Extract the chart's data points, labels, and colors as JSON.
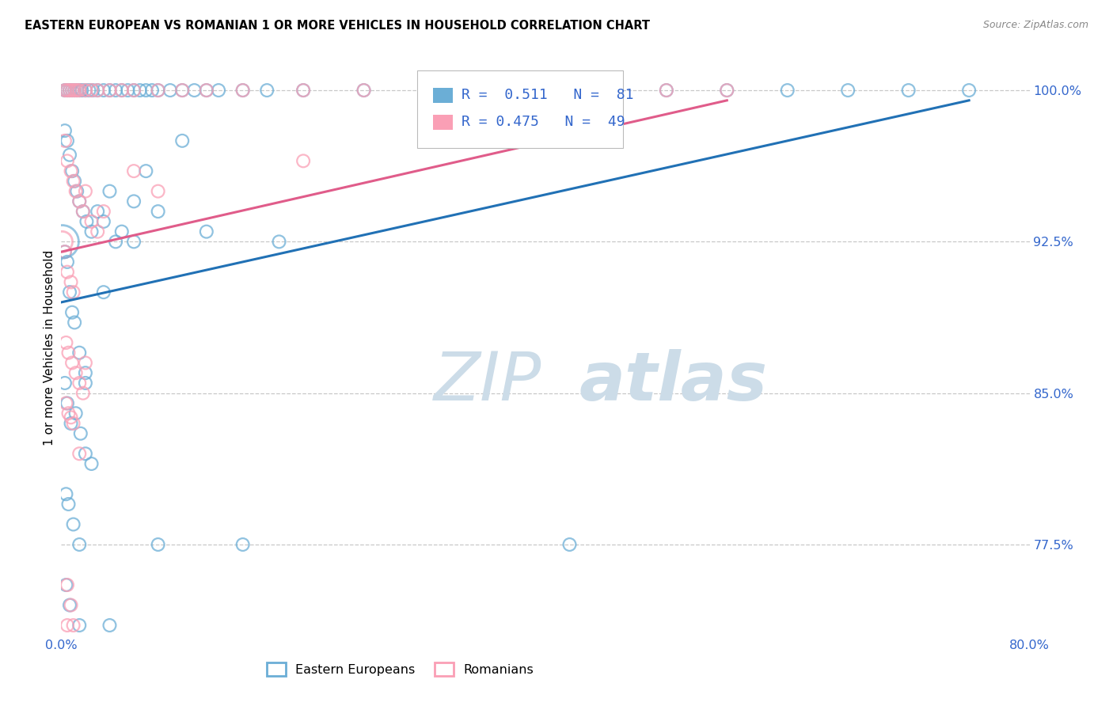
{
  "title": "EASTERN EUROPEAN VS ROMANIAN 1 OR MORE VEHICLES IN HOUSEHOLD CORRELATION CHART",
  "source": "Source: ZipAtlas.com",
  "ylabel": "1 or more Vehicles in Household",
  "xlim": [
    0.0,
    80.0
  ],
  "ylim": [
    73.0,
    101.5
  ],
  "yticks": [
    77.5,
    85.0,
    92.5,
    100.0
  ],
  "xtick_labels": [
    "0.0%",
    "",
    "",
    "",
    "",
    "",
    "",
    "",
    "80.0%"
  ],
  "ytick_labels": [
    "77.5%",
    "85.0%",
    "92.5%",
    "100.0%"
  ],
  "blue_color": "#6baed6",
  "pink_color": "#fa9fb5",
  "blue_line_color": "#2171b5",
  "pink_line_color": "#e05c8a",
  "legend_R_blue": "0.511",
  "legend_N_blue": "81",
  "legend_R_pink": "0.475",
  "legend_N_pink": "49",
  "watermark_zip": "ZIP",
  "watermark_atlas": "atlas",
  "watermark_color": "#ccdce8",
  "blue_scatter_x": [
    0.3,
    0.5,
    0.7,
    0.9,
    1.1,
    1.3,
    1.5,
    1.7,
    2.0,
    2.3,
    2.6,
    3.0,
    3.5,
    4.0,
    4.5,
    5.0,
    5.5,
    6.0,
    6.5,
    7.0,
    7.5,
    8.0,
    9.0,
    10.0,
    11.0,
    12.0,
    13.0,
    15.0,
    17.0,
    20.0,
    25.0,
    30.0,
    35.0,
    40.0,
    45.0,
    50.0,
    55.0,
    60.0,
    65.0,
    70.0,
    75.0,
    0.3,
    0.5,
    0.7,
    0.9,
    1.1,
    1.3,
    1.5,
    1.8,
    2.1,
    2.5,
    3.0,
    3.5,
    4.0,
    4.5,
    5.0,
    6.0,
    7.0,
    8.0,
    10.0,
    12.0,
    18.0,
    0.3,
    0.5,
    0.7,
    0.9,
    1.1,
    1.5,
    2.0,
    0.3,
    0.5,
    0.8,
    1.2,
    1.6,
    2.0,
    2.5,
    0.4,
    0.6,
    1.0,
    1.5,
    0.4,
    0.7,
    3.5,
    6.0,
    2.0,
    8.0,
    15.0,
    42.0,
    1.5,
    4.0
  ],
  "blue_scatter_y": [
    100.0,
    100.0,
    100.0,
    100.0,
    100.0,
    100.0,
    100.0,
    100.0,
    100.0,
    100.0,
    100.0,
    100.0,
    100.0,
    100.0,
    100.0,
    100.0,
    100.0,
    100.0,
    100.0,
    100.0,
    100.0,
    100.0,
    100.0,
    100.0,
    100.0,
    100.0,
    100.0,
    100.0,
    100.0,
    100.0,
    100.0,
    100.0,
    100.0,
    100.0,
    100.0,
    100.0,
    100.0,
    100.0,
    100.0,
    100.0,
    100.0,
    98.0,
    97.5,
    96.8,
    96.0,
    95.5,
    95.0,
    94.5,
    94.0,
    93.5,
    93.0,
    94.0,
    93.5,
    95.0,
    92.5,
    93.0,
    94.5,
    96.0,
    94.0,
    97.5,
    93.0,
    92.5,
    92.0,
    91.5,
    90.0,
    89.0,
    88.5,
    87.0,
    86.0,
    85.5,
    84.5,
    83.5,
    84.0,
    83.0,
    82.0,
    81.5,
    80.0,
    79.5,
    78.5,
    77.5,
    75.5,
    74.5,
    90.0,
    92.5,
    85.5,
    77.5,
    77.5,
    77.5,
    73.5,
    73.5
  ],
  "pink_scatter_x": [
    0.3,
    0.5,
    0.7,
    0.9,
    1.1,
    1.3,
    1.5,
    2.0,
    2.5,
    3.0,
    4.0,
    5.0,
    6.0,
    8.0,
    10.0,
    12.0,
    15.0,
    20.0,
    25.0,
    30.0,
    35.0,
    40.0,
    50.0,
    55.0,
    0.3,
    0.5,
    0.8,
    1.0,
    1.2,
    1.5,
    1.8,
    2.0,
    2.5,
    3.0,
    3.5,
    6.0,
    8.0,
    20.0,
    0.3,
    0.5,
    0.8,
    1.0,
    0.4,
    0.6,
    0.9,
    1.2,
    1.5,
    1.8,
    2.0,
    0.4,
    0.6,
    0.8,
    1.0,
    1.5,
    0.5,
    0.8,
    0.5,
    1.0
  ],
  "pink_scatter_y": [
    100.0,
    100.0,
    100.0,
    100.0,
    100.0,
    100.0,
    100.0,
    100.0,
    100.0,
    100.0,
    100.0,
    100.0,
    100.0,
    100.0,
    100.0,
    100.0,
    100.0,
    100.0,
    100.0,
    100.0,
    100.0,
    100.0,
    100.0,
    100.0,
    97.5,
    96.5,
    96.0,
    95.5,
    95.0,
    94.5,
    94.0,
    95.0,
    93.5,
    93.0,
    94.0,
    96.0,
    95.0,
    96.5,
    92.0,
    91.0,
    90.5,
    90.0,
    87.5,
    87.0,
    86.5,
    86.0,
    85.5,
    85.0,
    86.5,
    84.5,
    84.0,
    83.8,
    83.5,
    82.0,
    75.5,
    74.5,
    73.5,
    73.5
  ],
  "blue_line_x0": 0.0,
  "blue_line_y0": 89.5,
  "blue_line_x1": 75.0,
  "blue_line_y1": 99.5,
  "pink_line_x0": 0.0,
  "pink_line_y0": 92.0,
  "pink_line_x1": 55.0,
  "pink_line_y1": 99.5
}
